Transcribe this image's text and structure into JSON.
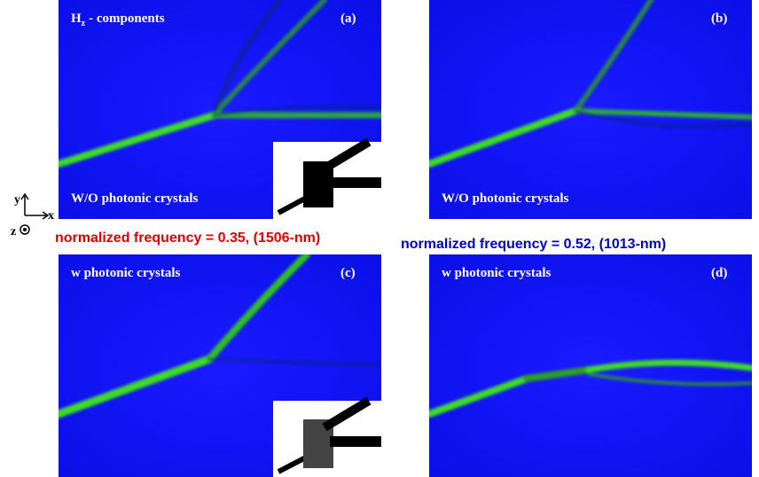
{
  "header": {
    "field_symbol": "H",
    "field_subscript": "z",
    "field_text": "- components"
  },
  "axes": {
    "x": "x",
    "y": "y",
    "z": "z"
  },
  "panels": [
    {
      "label": "(a)",
      "caption": "W/O photonic crystals"
    },
    {
      "label": "(b)",
      "caption": "W/O photonic crystals"
    },
    {
      "label": "(c)",
      "caption": "w photonic crystals"
    },
    {
      "label": "(d)",
      "caption": "w photonic crystals"
    }
  ],
  "frequencies": [
    "normalized frequency = 0.35, (1506-nm)",
    "normalized frequency = 0.52, (1013-nm)"
  ]
}
